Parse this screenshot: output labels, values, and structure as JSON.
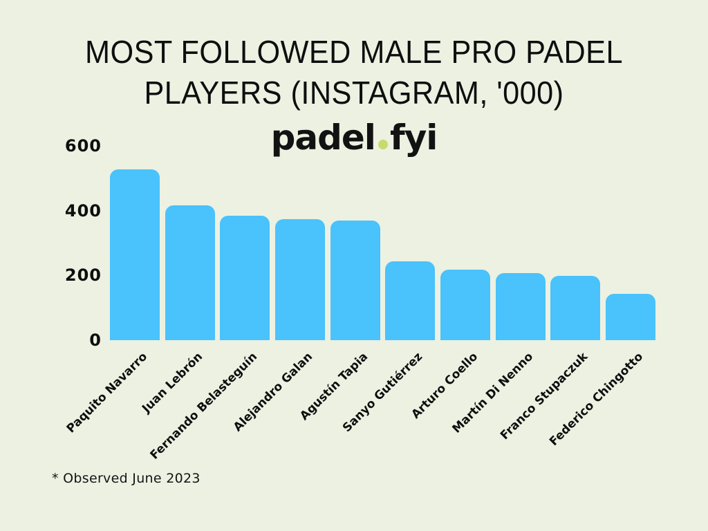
{
  "page": {
    "background_color": "#ecf1e2",
    "text_color": "#0e0e0e"
  },
  "header": {
    "title_line1": "MOST FOLLOWED MALE PRO PADEL",
    "title_line2": "PLAYERS (INSTAGRAM, '000)"
  },
  "logo": {
    "word1": "padel",
    "word2": "fyi",
    "dot_icon_color": "#c7da6e",
    "text_color": "#121212"
  },
  "footnote": "* Observed June 2023",
  "chart_data": {
    "type": "bar",
    "title": "MOST FOLLOWED MALE PRO PADEL PLAYERS (INSTAGRAM, '000)",
    "categories": [
      "Paquito Navarro",
      "Juan Lebrón",
      "Fernando Belasteguín",
      "Alejandro Galan",
      "Agustín Tapia",
      "Sanyo Gutiérrez",
      "Arturo Coello",
      "Martín Di Nenno",
      "Franco Stupaczuk",
      "Federico Chingotto"
    ],
    "values": [
      527,
      417,
      384,
      373,
      370,
      243,
      218,
      207,
      199,
      143
    ],
    "unit": "thousands of Instagram followers",
    "xlabel": "",
    "ylabel": "",
    "ylim": [
      0,
      600
    ],
    "yticks": [
      0,
      200,
      400,
      600
    ],
    "grid": false,
    "legend": false,
    "bar_color": "#4ac2fb",
    "x_label_rotation_deg": -45,
    "annotation": "* Observed June 2023"
  }
}
